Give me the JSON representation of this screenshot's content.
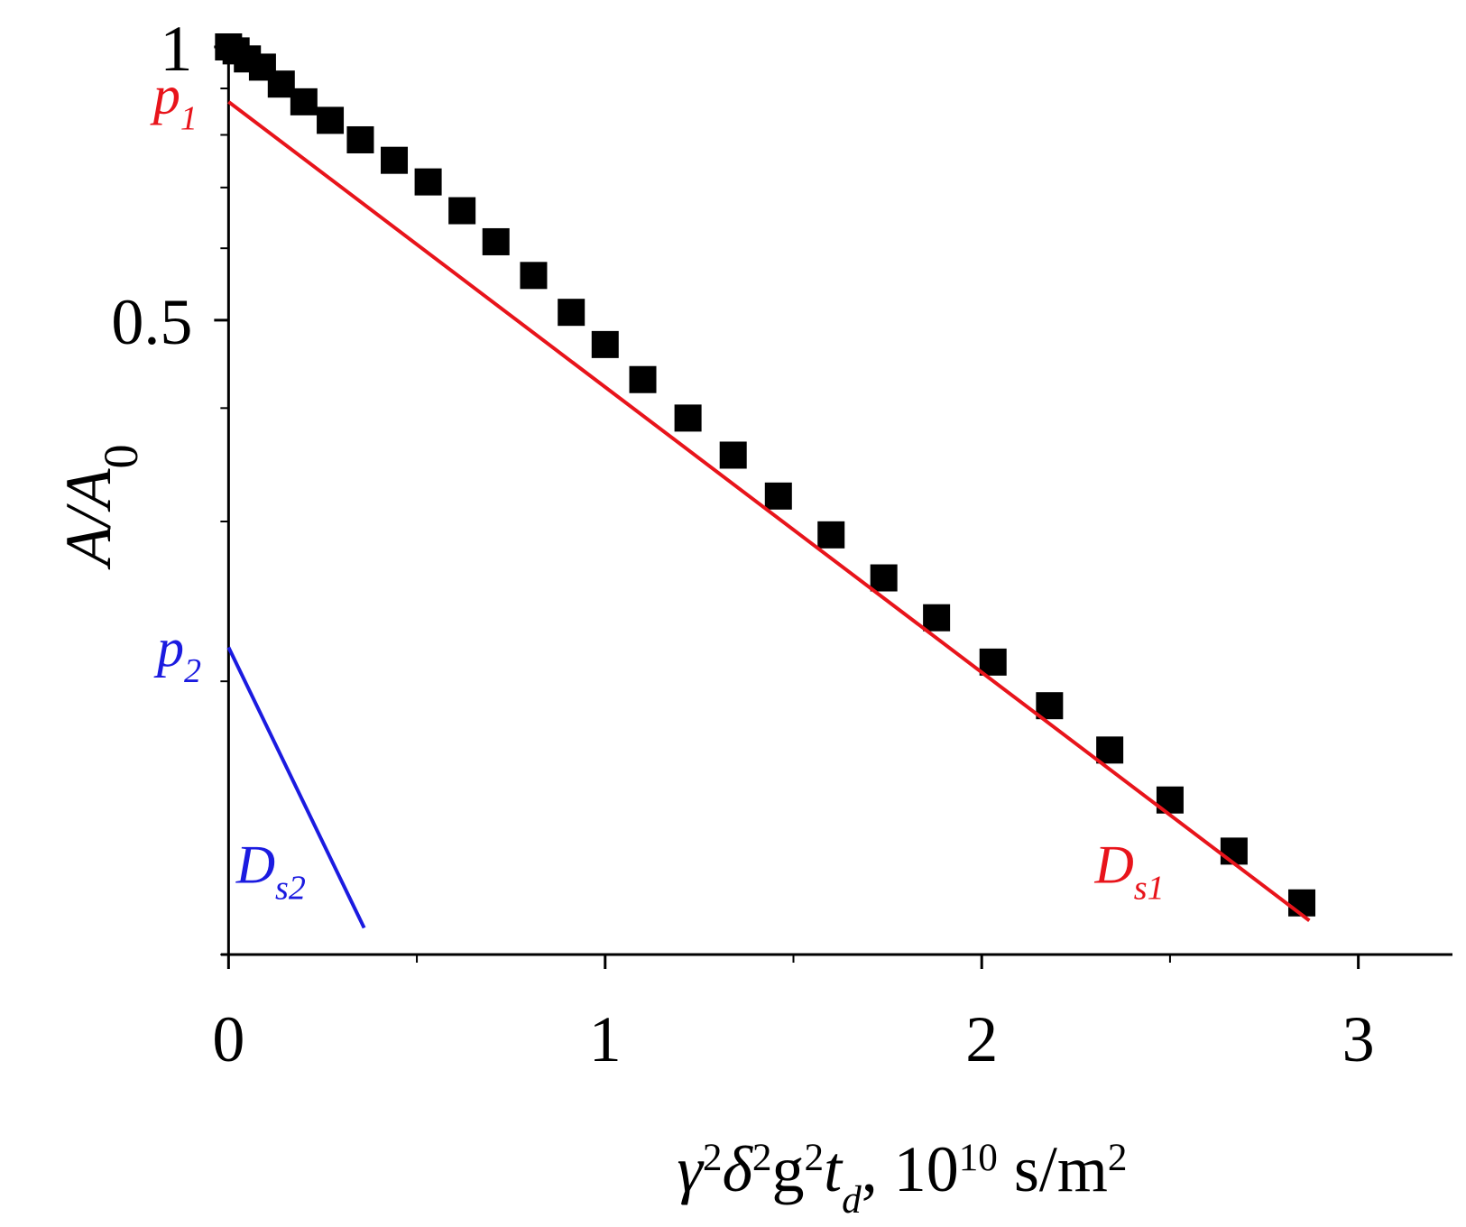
{
  "chart_data": {
    "type": "scatter",
    "title": "",
    "xlabel": {
      "parts": [
        {
          "text": "γ",
          "style": "italic"
        },
        {
          "text": "2",
          "style": "sup"
        },
        {
          "text": "δ",
          "style": "italic"
        },
        {
          "text": "2",
          "style": "sup"
        },
        {
          "text": "g",
          "style": "normal"
        },
        {
          "text": "2",
          "style": "sup"
        },
        {
          "text": "t",
          "style": "italic"
        },
        {
          "text": "d",
          "style": "italic-sub"
        },
        {
          "text": ", 10",
          "style": "normal"
        },
        {
          "text": "10",
          "style": "sup"
        },
        {
          "text": " s/m",
          "style": "normal"
        },
        {
          "text": "2",
          "style": "sup"
        }
      ]
    },
    "ylabel": {
      "parts": [
        {
          "text": "A/A",
          "style": "italic"
        },
        {
          "text": "0",
          "style": "sub"
        }
      ]
    },
    "xlim": [
      -0.02,
      3.25
    ],
    "ylim": [
      0.1,
      1.0
    ],
    "yscale": "log",
    "x_ticks": [
      0,
      1,
      2,
      3
    ],
    "x_tick_labels": [
      "0",
      "1",
      "2",
      "3"
    ],
    "y_major_ticks": [
      0.5,
      1.0
    ],
    "y_tick_labels": [
      "0.5",
      "1"
    ],
    "y_minor_ticks": [
      0.1,
      0.2,
      0.3,
      0.4,
      0.6,
      0.7,
      0.8,
      0.9
    ],
    "grid": false,
    "legend": "none",
    "series": [
      {
        "kind": "points",
        "marker": "square",
        "color": "#000000",
        "x": [
          0.0,
          0.02,
          0.05,
          0.09,
          0.14,
          0.2,
          0.27,
          0.35,
          0.44,
          0.53,
          0.62,
          0.71,
          0.81,
          0.91,
          1.0,
          1.1,
          1.22,
          1.34,
          1.46,
          1.6,
          1.74,
          1.88,
          2.03,
          2.18,
          2.34,
          2.5,
          2.67,
          2.85
        ],
        "y": [
          1.0,
          0.99,
          0.97,
          0.95,
          0.91,
          0.87,
          0.83,
          0.79,
          0.75,
          0.71,
          0.66,
          0.61,
          0.56,
          0.51,
          0.47,
          0.43,
          0.39,
          0.355,
          0.32,
          0.29,
          0.26,
          0.235,
          0.21,
          0.188,
          0.168,
          0.148,
          0.13,
          0.114
        ]
      },
      {
        "kind": "line",
        "name": "p1 / Ds1",
        "color": "#e8141b",
        "x": [
          0.0,
          2.87
        ],
        "y": [
          0.87,
          0.109
        ]
      },
      {
        "kind": "line",
        "name": "p2 / Ds2",
        "color": "#1b1be0",
        "x": [
          0.0,
          0.36
        ],
        "y": [
          0.218,
          0.107
        ]
      }
    ],
    "annotations": [
      {
        "id": "p1",
        "main": "p",
        "sub": "1",
        "color": "#e8141b",
        "x": -0.2,
        "y": 0.845
      },
      {
        "id": "p2",
        "main": "p",
        "sub": "2",
        "color": "#1b1be0",
        "x": -0.19,
        "y": 0.208
      },
      {
        "id": "Ds1",
        "main": "D",
        "sub": "s1",
        "color": "#e8141b",
        "x": 2.3,
        "y": 0.12
      },
      {
        "id": "Ds2",
        "main": "D",
        "sub": "s2",
        "color": "#1b1be0",
        "x": 0.02,
        "y": 0.12
      }
    ]
  }
}
